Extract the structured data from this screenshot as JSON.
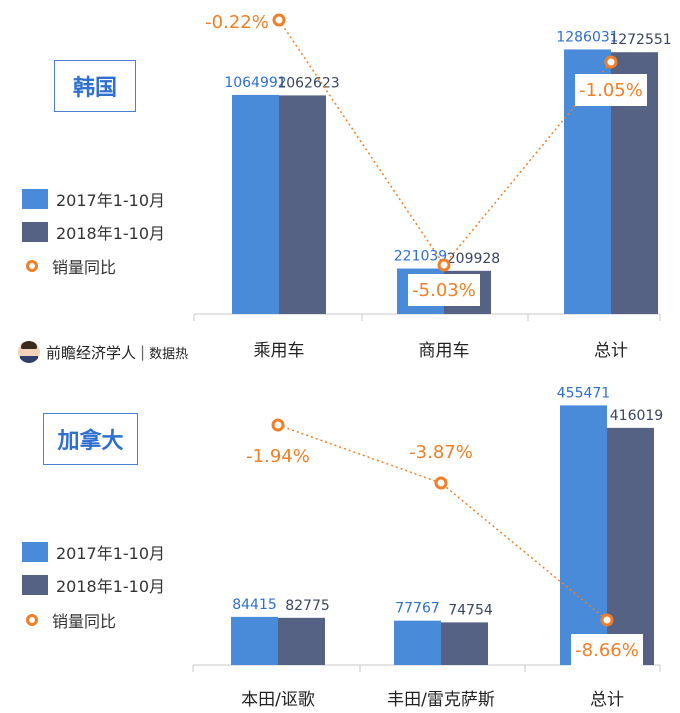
{
  "colors": {
    "series2017": "#4a8bd9",
    "series2018": "#566283",
    "yoy": "#f07f27",
    "axis": "#c8c8c8",
    "label2017": "#2e6fcf",
    "label2018": "#3a4560"
  },
  "legend": {
    "s2017": "2017年1-10月",
    "s2018": "2018年1-10月",
    "yoy": "销量同比"
  },
  "brand": {
    "name": "前瞻经济学人",
    "sub": "数据热"
  },
  "chart_data": [
    {
      "type": "bar",
      "panel_label": "韩国",
      "categories": [
        "乘用车",
        "商用车",
        "总计"
      ],
      "series": [
        {
          "name": "2017年1-10月",
          "values": [
            1064992,
            221039,
            1286031
          ]
        },
        {
          "name": "2018年1-10月",
          "values": [
            1062623,
            209928,
            1272551
          ]
        }
      ],
      "yoy": {
        "name": "销量同比",
        "values": [
          -0.22,
          -5.03,
          -1.05
        ],
        "labels": [
          "-0.22%",
          "-5.03%",
          "-1.05%"
        ]
      },
      "ylim": [
        0,
        1400000
      ],
      "legend_position": "left"
    },
    {
      "type": "bar",
      "panel_label": "加拿大",
      "categories": [
        "本田/讴歌",
        "丰田/雷克萨斯",
        "总计"
      ],
      "series": [
        {
          "name": "2017年1-10月",
          "values": [
            84415,
            77767,
            455471
          ]
        },
        {
          "name": "2018年1-10月",
          "values": [
            82775,
            74754,
            416019
          ]
        }
      ],
      "yoy": {
        "name": "销量同比",
        "values": [
          -1.94,
          -3.87,
          -8.66
        ],
        "labels": [
          "-1.94%",
          "-3.87%",
          "-8.66%"
        ]
      },
      "ylim": [
        0,
        500000
      ],
      "legend_position": "left"
    }
  ]
}
